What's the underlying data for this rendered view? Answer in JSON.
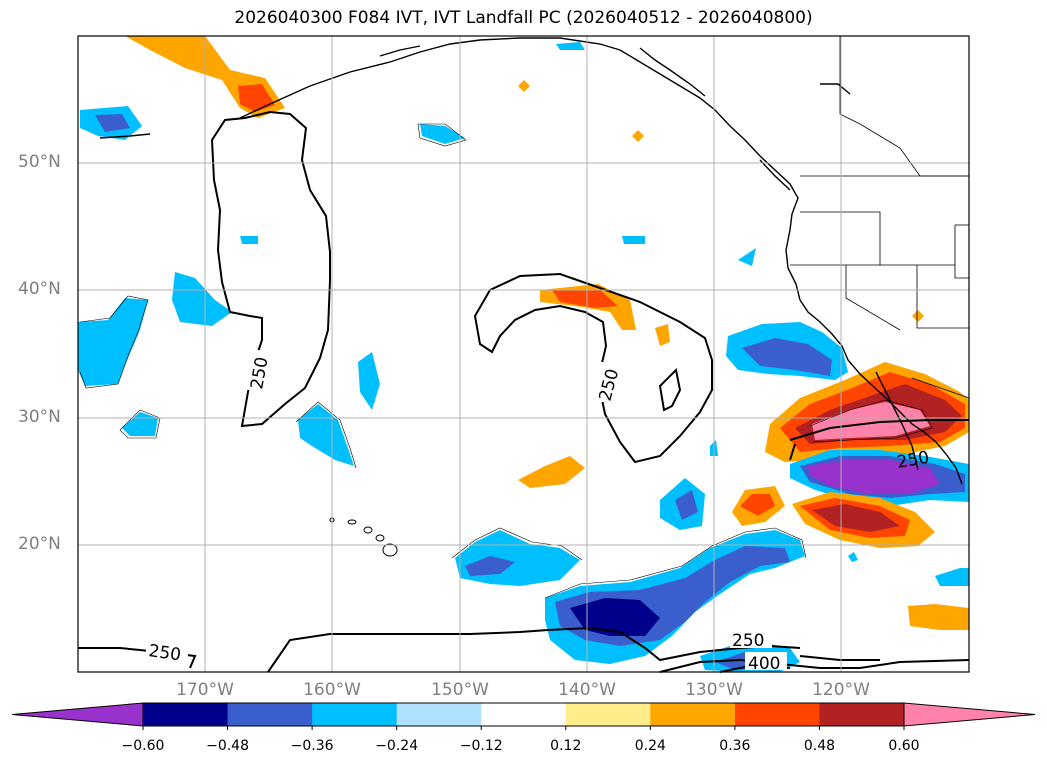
{
  "title": "2026040300 F084 IVT, IVT Landfall PC (2026040512 - 2026040800)",
  "lat_labels": [
    "50°N",
    "40°N",
    "30°N",
    "20°N"
  ],
  "lon_labels": [
    "170°W",
    "160°W",
    "150°W",
    "140°W",
    "130°W",
    "120°W"
  ],
  "contour_labels": [
    "250",
    "250",
    "250",
    "250",
    "250",
    "400"
  ],
  "colorbar": {
    "ticks": [
      "−0.60",
      "−0.48",
      "−0.36",
      "−0.24",
      "−0.12",
      "0.12",
      "0.24",
      "0.36",
      "0.48",
      "0.60"
    ],
    "colors": [
      "#9932cc",
      "#00008b",
      "#3a5fcd",
      "#00bfff",
      "#b0e2ff",
      "#ffffff",
      "#ffec8b",
      "#ffa500",
      "#ff4500",
      "#b22222",
      "#ff82ab"
    ]
  }
}
